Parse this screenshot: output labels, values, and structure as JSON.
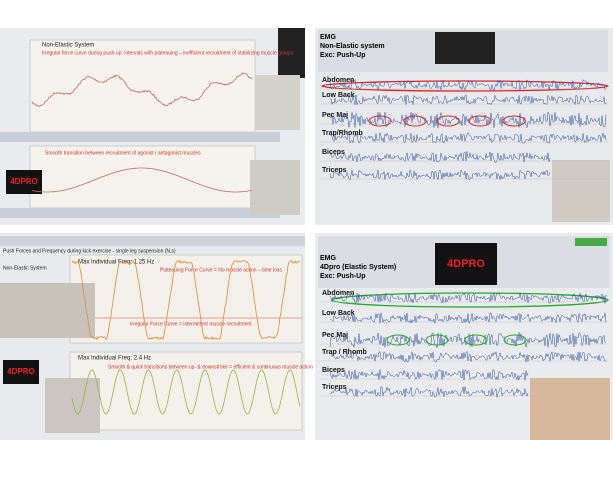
{
  "panels": [
    {
      "title": "Non-Elastic System",
      "top_note": "Irregular force curve during push-up: intervals with plateauing – inefficient recruitment of stabilizing muscle groups",
      "bottom_note": "Smooth transition between recruitment of agonist / antagonist muscles",
      "logo": "4DPRO"
    },
    {
      "header": [
        "EMG",
        "Non-Elastic system",
        "Exc: Push-Up"
      ],
      "channels": [
        "Abdomen",
        "Low Back",
        "Pec Maj",
        "Trap/Rhomb",
        "Biceps",
        "Triceps"
      ]
    },
    {
      "toolbar": "Push Forces and Frequency during kick exercise - single leg suspension (N,s)",
      "title": "Non-Elastic System",
      "top_freq": "Max Individual Freq: 1.25 Hz",
      "plateau_note": "Plateauing Force Curve = No muscle action – time loss",
      "irregular_note": "Irregular Force Curve = intermittent muscle recruitment",
      "bottom_freq": "Max Individual Freq: 2.4 Hz",
      "smooth_note": "Smooth & quick transitions between up- & downstroke = efficient & continuous muscle action",
      "logo": "4DPRO"
    },
    {
      "header": [
        "EMG",
        "4Dpro (Elastic System)",
        "Exc: Push-Up"
      ],
      "logo": "4DPRO",
      "channels": [
        "Abdomen",
        "Low Back",
        "Pec Maj",
        "Trap / Rhomb",
        "Biceps",
        "Triceps"
      ]
    }
  ]
}
